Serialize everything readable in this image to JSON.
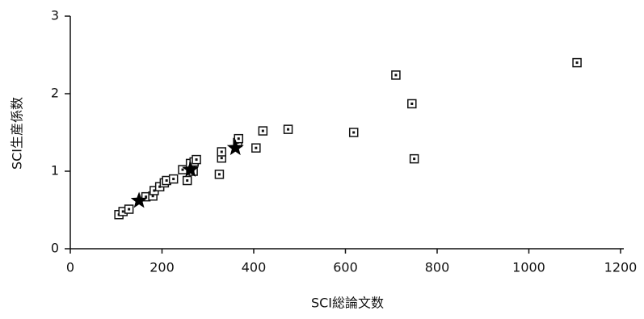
{
  "chart_data": {
    "type": "scatter",
    "xlabel": "SCI総論文数",
    "ylabel": "SCI生産係数",
    "xlim": [
      0,
      1200
    ],
    "xticks": [
      0,
      200,
      400,
      600,
      800,
      1000,
      1200
    ],
    "ylim": [
      0,
      3
    ],
    "yticks": [
      0,
      1,
      2,
      3
    ],
    "series": [
      {
        "color": "#111111",
        "marker": "square",
        "x": [
          106,
          115,
          128,
          165,
          180,
          183,
          195,
          205,
          210,
          225,
          245,
          255,
          262,
          268,
          270,
          275,
          325,
          330,
          330,
          365,
          367,
          405,
          420,
          475,
          618,
          710,
          745,
          750,
          1105
        ],
        "values": [
          0.44,
          0.48,
          0.51,
          0.67,
          0.68,
          0.75,
          0.8,
          0.85,
          0.88,
          0.9,
          1.02,
          0.88,
          1.1,
          1.0,
          1.12,
          1.15,
          0.96,
          1.17,
          1.25,
          1.37,
          1.42,
          1.3,
          1.52,
          1.54,
          1.5,
          2.24,
          1.87,
          1.16,
          2.4
        ]
      },
      {
        "color": "#000000",
        "marker": "star",
        "x": [
          150,
          262,
          360
        ],
        "values": [
          0.62,
          1.02,
          1.3
        ]
      }
    ]
  }
}
